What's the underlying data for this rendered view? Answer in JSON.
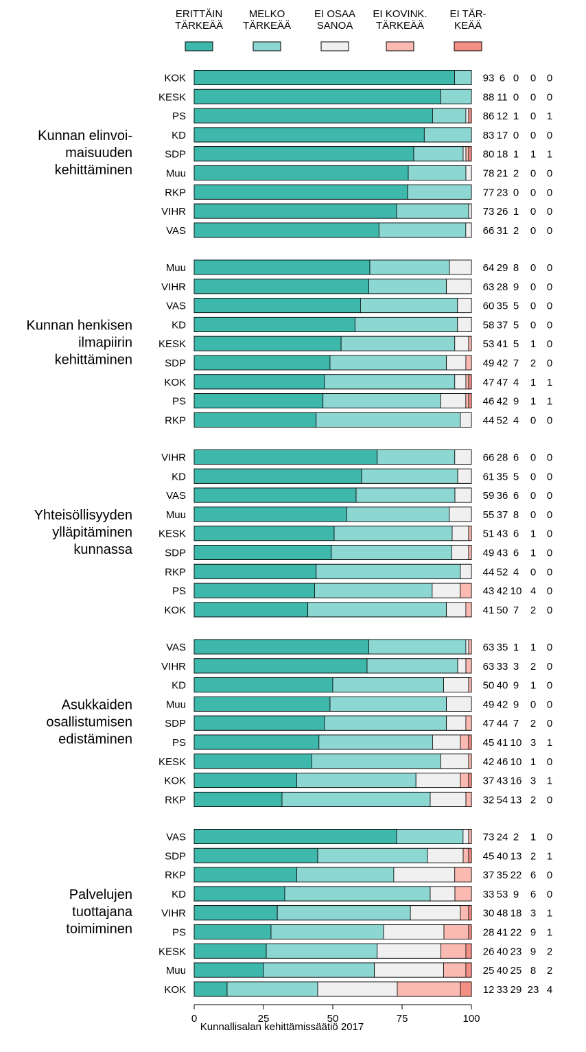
{
  "chart_data": {
    "type": "bar",
    "stacked": true,
    "orientation": "horizontal",
    "legend": [
      "ERITTÄIN TÄRKEÄÄ",
      "MELKO TÄRKEÄÄ",
      "EI OSAA SANOA",
      "EI KOVINK. TÄRKEÄÄ",
      "EI TÄR-KEÄÄ"
    ],
    "legend_lines": [
      [
        "ERITTÄIN",
        "TÄRKEÄÄ"
      ],
      [
        "MELKO",
        "TÄRKEÄÄ"
      ],
      [
        "EI OSAA",
        "SANOA"
      ],
      [
        "EI KOVINK.",
        "TÄRKEÄÄ"
      ],
      [
        "EI TÄR-",
        "KEÄÄ"
      ]
    ],
    "legend_placement": "top",
    "colors": [
      "#3fb8ac",
      "#8dd7d3",
      "#f0f0f0",
      "#fbbab1",
      "#f48f85"
    ],
    "xlim": [
      0,
      100
    ],
    "xticks": [
      "0",
      "25",
      "50",
      "75",
      "100"
    ],
    "groups": [
      {
        "title": "Kunnan elinvoimaisuuden kehittäminen",
        "title_lines": [
          "Kunnan elinvoi-",
          "maisuuden",
          "kehittäminen"
        ],
        "rows": [
          {
            "label": "KOK",
            "values": [
              93,
              6,
              0,
              0,
              0
            ]
          },
          {
            "label": "KESK",
            "values": [
              88,
              11,
              0,
              0,
              0
            ]
          },
          {
            "label": "PS",
            "values": [
              86,
              12,
              1,
              0,
              1
            ]
          },
          {
            "label": "KD",
            "values": [
              83,
              17,
              0,
              0,
              0
            ]
          },
          {
            "label": "SDP",
            "values": [
              80,
              18,
              1,
              1,
              1
            ]
          },
          {
            "label": "Muu",
            "values": [
              78,
              21,
              2,
              0,
              0
            ]
          },
          {
            "label": "RKP",
            "values": [
              77,
              23,
              0,
              0,
              0
            ]
          },
          {
            "label": "VIHR",
            "values": [
              73,
              26,
              1,
              0,
              0
            ]
          },
          {
            "label": "VAS",
            "values": [
              66,
              31,
              2,
              0,
              0
            ]
          }
        ]
      },
      {
        "title": "Kunnan henkisen ilmapiirin kehittäminen",
        "title_lines": [
          "Kunnan henkisen",
          "ilmapiirin",
          "kehittäminen"
        ],
        "rows": [
          {
            "label": "Muu",
            "values": [
              64,
              29,
              8,
              0,
              0
            ]
          },
          {
            "label": "VIHR",
            "values": [
              63,
              28,
              9,
              0,
              0
            ]
          },
          {
            "label": "VAS",
            "values": [
              60,
              35,
              5,
              0,
              0
            ]
          },
          {
            "label": "KD",
            "values": [
              58,
              37,
              5,
              0,
              0
            ]
          },
          {
            "label": "KESK",
            "values": [
              53,
              41,
              5,
              1,
              0
            ]
          },
          {
            "label": "SDP",
            "values": [
              49,
              42,
              7,
              2,
              0
            ]
          },
          {
            "label": "KOK",
            "values": [
              47,
              47,
              4,
              1,
              1
            ]
          },
          {
            "label": "PS",
            "values": [
              46,
              42,
              9,
              1,
              1
            ]
          },
          {
            "label": "RKP",
            "values": [
              44,
              52,
              4,
              0,
              0
            ]
          }
        ]
      },
      {
        "title": "Yhteisöllisyyden ylläpitäminen kunnassa",
        "title_lines": [
          "Yhteisöllisyyden",
          "ylläpitäminen",
          "kunnassa"
        ],
        "rows": [
          {
            "label": "VIHR",
            "values": [
              66,
              28,
              6,
              0,
              0
            ]
          },
          {
            "label": "KD",
            "values": [
              61,
              35,
              5,
              0,
              0
            ]
          },
          {
            "label": "VAS",
            "values": [
              59,
              36,
              6,
              0,
              0
            ]
          },
          {
            "label": "Muu",
            "values": [
              55,
              37,
              8,
              0,
              0
            ]
          },
          {
            "label": "KESK",
            "values": [
              51,
              43,
              6,
              1,
              0
            ]
          },
          {
            "label": "SDP",
            "values": [
              49,
              43,
              6,
              1,
              0
            ]
          },
          {
            "label": "RKP",
            "values": [
              44,
              52,
              4,
              0,
              0
            ]
          },
          {
            "label": "PS",
            "values": [
              43,
              42,
              10,
              4,
              0
            ]
          },
          {
            "label": "KOK",
            "values": [
              41,
              50,
              7,
              2,
              0
            ]
          }
        ]
      },
      {
        "title": "Asukkaiden osallistumisen edistäminen",
        "title_lines": [
          "Asukkaiden",
          "osallistumisen",
          "edistäminen"
        ],
        "rows": [
          {
            "label": "VAS",
            "values": [
              63,
              35,
              1,
              1,
              0
            ]
          },
          {
            "label": "VIHR",
            "values": [
              63,
              33,
              3,
              2,
              0
            ]
          },
          {
            "label": "KD",
            "values": [
              50,
              40,
              9,
              1,
              0
            ]
          },
          {
            "label": "Muu",
            "values": [
              49,
              42,
              9,
              0,
              0
            ]
          },
          {
            "label": "SDP",
            "values": [
              47,
              44,
              7,
              2,
              0
            ]
          },
          {
            "label": "PS",
            "values": [
              45,
              41,
              10,
              3,
              1
            ]
          },
          {
            "label": "KESK",
            "values": [
              42,
              46,
              10,
              1,
              0
            ]
          },
          {
            "label": "KOK",
            "values": [
              37,
              43,
              16,
              3,
              1
            ]
          },
          {
            "label": "RKP",
            "values": [
              32,
              54,
              13,
              2,
              0
            ]
          }
        ]
      },
      {
        "title": "Palvelujen tuottajana toimiminen",
        "title_lines": [
          "Palvelujen",
          "tuottajana",
          "toimiminen"
        ],
        "rows": [
          {
            "label": "VAS",
            "values": [
              73,
              24,
              2,
              1,
              0
            ]
          },
          {
            "label": "SDP",
            "values": [
              45,
              40,
              13,
              2,
              1
            ]
          },
          {
            "label": "RKP",
            "values": [
              37,
              35,
              22,
              6,
              0
            ]
          },
          {
            "label": "KD",
            "values": [
              33,
              53,
              9,
              6,
              0
            ]
          },
          {
            "label": "VIHR",
            "values": [
              30,
              48,
              18,
              3,
              1
            ]
          },
          {
            "label": "PS",
            "values": [
              28,
              41,
              22,
              9,
              1
            ]
          },
          {
            "label": "KESK",
            "values": [
              26,
              40,
              23,
              9,
              2
            ]
          },
          {
            "label": "Muu",
            "values": [
              25,
              40,
              25,
              8,
              2
            ]
          },
          {
            "label": "KOK",
            "values": [
              12,
              33,
              29,
              23,
              4
            ]
          }
        ]
      }
    ]
  },
  "credit": "Kunnallisalan kehittämissäätiö 2017"
}
